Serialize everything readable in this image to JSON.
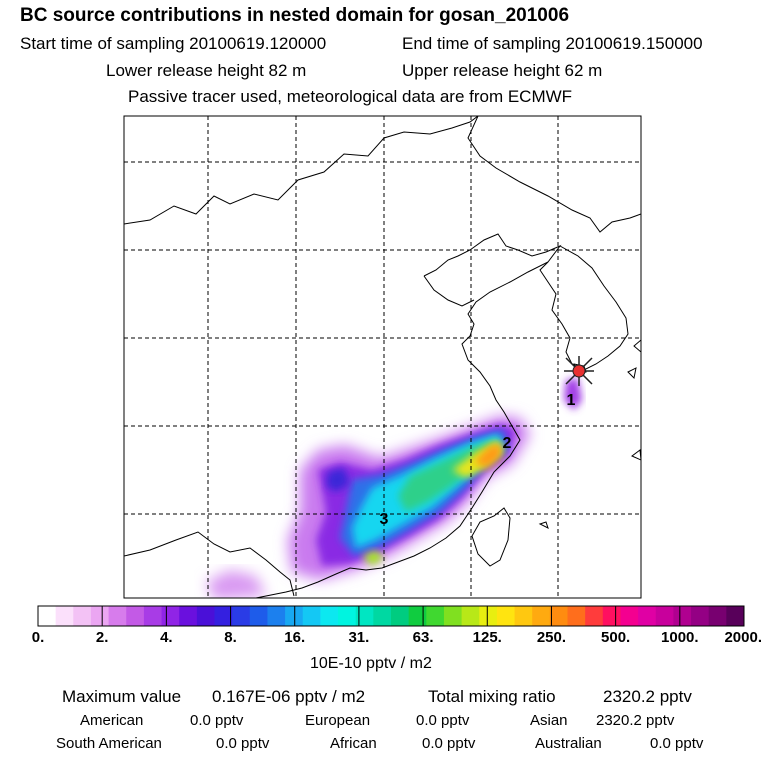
{
  "header": {
    "title": "BC  source contributions in nested domain for gosan_201006",
    "start_label": "Start time of sampling 20100619.120000",
    "end_label": "End time of sampling 20100619.150000",
    "lower_label": "Lower release height   82 m",
    "upper_label": "Upper release height   62 m",
    "note": "Passive tracer used, meteorological data are from ECMWF"
  },
  "map": {
    "markers": [
      "1",
      "2",
      "3"
    ],
    "receptor_symbol": "star-cross-icon"
  },
  "colorbar": {
    "ticks": [
      "0.",
      "2.",
      "4.",
      "8.",
      "16.",
      "31.",
      "63.",
      "125.",
      "250.",
      "500.",
      "1000.",
      "2000."
    ],
    "colors": [
      "#ffffff",
      "#fbe0fb",
      "#f3c2f5",
      "#eba6f2",
      "#d77cec",
      "#c35ae6",
      "#a83ce6",
      "#9024e6",
      "#6a10de",
      "#4a10d8",
      "#3420e0",
      "#2a3ce6",
      "#1e5cea",
      "#1c80ee",
      "#18a8f2",
      "#14c8f4",
      "#0ce8f0",
      "#00f4e0",
      "#00e6c2",
      "#00d8a2",
      "#00cc80",
      "#10cc40",
      "#40d830",
      "#80e020",
      "#b8e818",
      "#e8ee10",
      "#ffe410",
      "#ffc810",
      "#ffaa10",
      "#ff8c10",
      "#ff6e1c",
      "#ff3c3c",
      "#ff1060",
      "#f40090",
      "#e000a4",
      "#c8009c",
      "#b00090",
      "#940084",
      "#780070",
      "#58005a"
    ],
    "unit": "10E-10 pptv / m2"
  },
  "stats": {
    "max_label": "Maximum value",
    "max_value": "0.167E-06 pptv / m2",
    "total_label": "Total mixing ratio",
    "total_value": "2320.2 pptv",
    "regions": [
      {
        "name": "American",
        "value": "0.0 pptv"
      },
      {
        "name": "European",
        "value": "0.0 pptv"
      },
      {
        "name": "Asian",
        "value": "2320.2 pptv"
      },
      {
        "name": "South American",
        "value": "0.0 pptv"
      },
      {
        "name": "African",
        "value": "0.0 pptv"
      },
      {
        "name": "Australian",
        "value": "0.0 pptv"
      }
    ]
  }
}
